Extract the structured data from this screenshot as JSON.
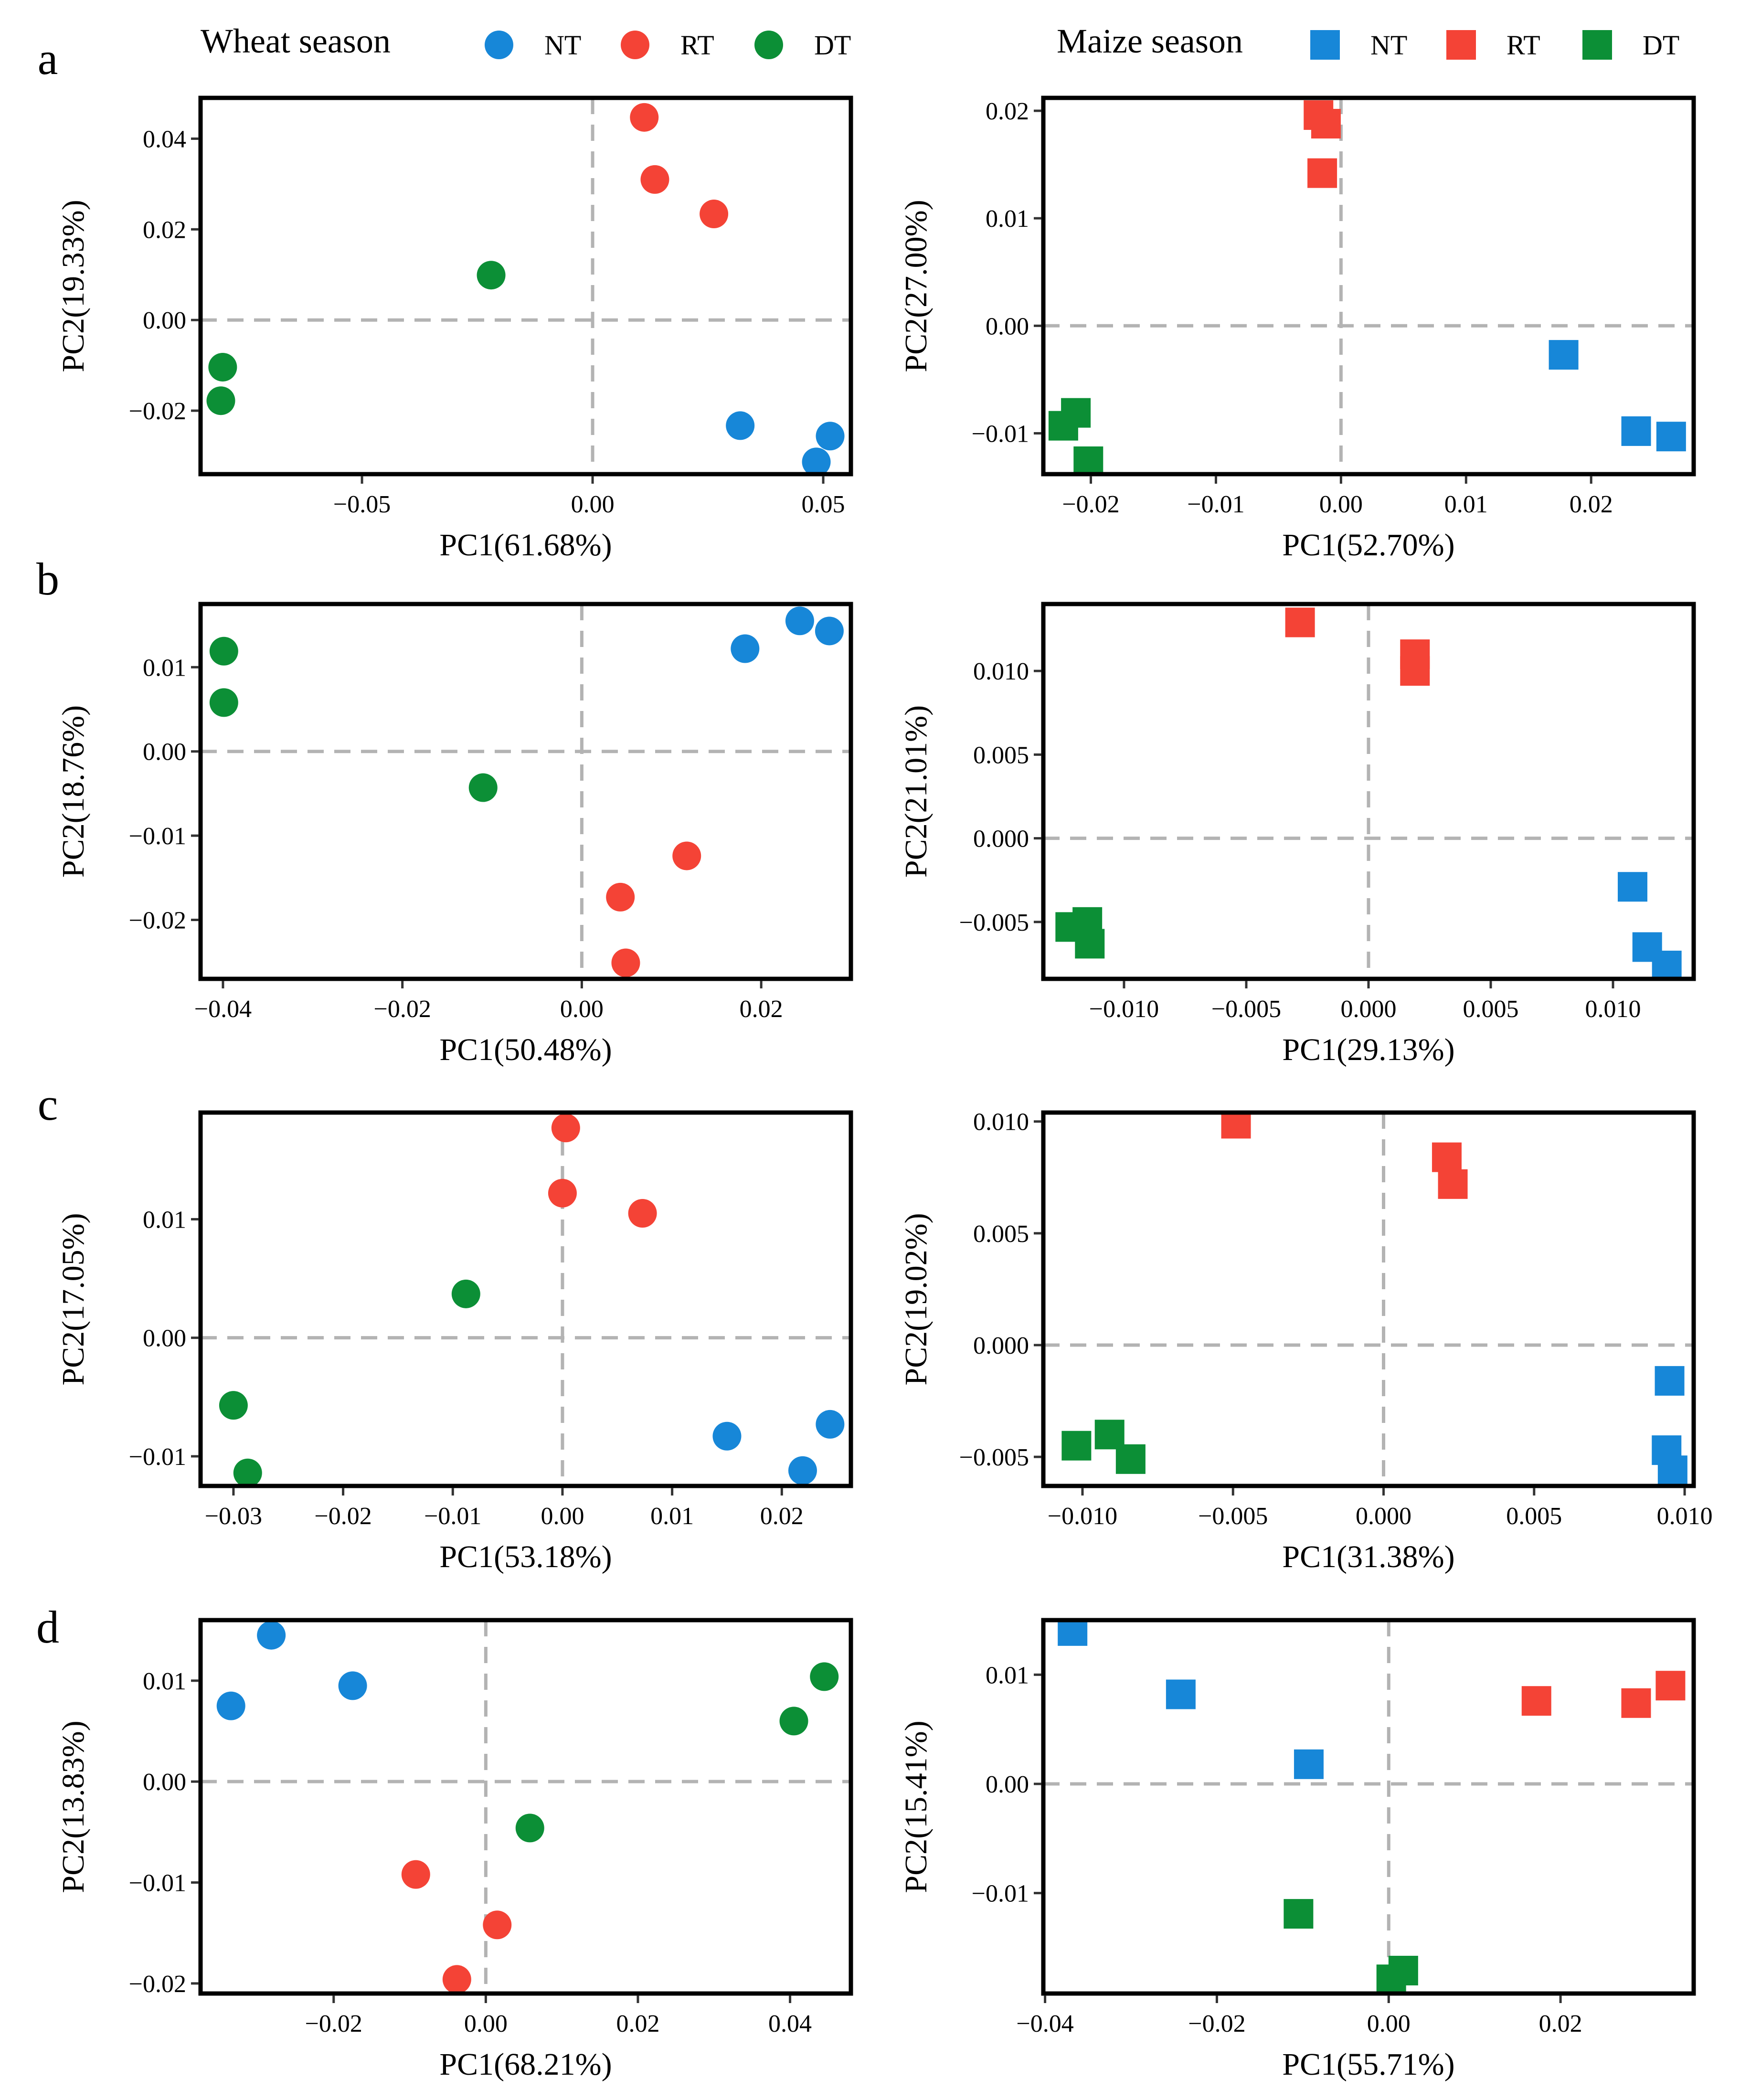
{
  "colors": {
    "NT": "#1787D8",
    "RT": "#F44336",
    "DT": "#0C8F36",
    "zero_line": "#B3B3B3",
    "frame": "#000000"
  },
  "legends": [
    {
      "title": "Wheat season",
      "marker": "circle",
      "entries": [
        {
          "label": "NT",
          "group": "NT"
        },
        {
          "label": "RT",
          "group": "RT"
        },
        {
          "label": "DT",
          "group": "DT"
        }
      ]
    },
    {
      "title": "Maize season",
      "marker": "square",
      "entries": [
        {
          "label": "NT",
          "group": "NT"
        },
        {
          "label": "RT",
          "group": "RT"
        },
        {
          "label": "DT",
          "group": "DT"
        }
      ]
    }
  ],
  "chart_data": [
    {
      "type": "scatter",
      "row_label": "a",
      "season": "Wheat season",
      "marker": "circle",
      "xlabel": "PC1(61.68%)",
      "ylabel": "PC2(19.33%)",
      "xlim": [
        -0.085,
        0.056
      ],
      "ylim": [
        -0.034,
        0.049
      ],
      "xticks": [
        -0.05,
        0.0,
        0.05
      ],
      "xtick_labels": [
        "−0.05",
        "0.00",
        "0.05"
      ],
      "yticks": [
        -0.02,
        0.0,
        0.02,
        0.04
      ],
      "ytick_labels": [
        "−0.02",
        "0.00",
        "0.02",
        "0.04"
      ],
      "points": [
        {
          "group": "NT",
          "x": 0.032,
          "y": -0.0233
        },
        {
          "group": "NT",
          "x": 0.0515,
          "y": -0.0256
        },
        {
          "group": "NT",
          "x": 0.0485,
          "y": -0.0313
        },
        {
          "group": "RT",
          "x": 0.0112,
          "y": 0.0447
        },
        {
          "group": "RT",
          "x": 0.0135,
          "y": 0.031
        },
        {
          "group": "RT",
          "x": 0.0263,
          "y": 0.0234
        },
        {
          "group": "DT",
          "x": -0.022,
          "y": 0.0099
        },
        {
          "group": "DT",
          "x": -0.0802,
          "y": -0.0104
        },
        {
          "group": "DT",
          "x": -0.0806,
          "y": -0.0178
        }
      ]
    },
    {
      "type": "scatter",
      "row_label": "",
      "season": "Maize season",
      "marker": "square",
      "xlabel": "PC1(52.70%)",
      "ylabel": "PC2(27.00%)",
      "xlim": [
        -0.0238,
        0.0282
      ],
      "ylim": [
        -0.0138,
        0.0212
      ],
      "xticks": [
        -0.02,
        -0.01,
        0.0,
        0.01,
        0.02
      ],
      "xtick_labels": [
        "−0.02",
        "−0.01",
        "0.00",
        "0.01",
        "0.02"
      ],
      "yticks": [
        -0.01,
        0.0,
        0.01,
        0.02
      ],
      "ytick_labels": [
        "−0.01",
        "0.00",
        "0.01",
        "0.02"
      ],
      "points": [
        {
          "group": "NT",
          "x": 0.0178,
          "y": -0.0027
        },
        {
          "group": "NT",
          "x": 0.0236,
          "y": -0.0098
        },
        {
          "group": "NT",
          "x": 0.0264,
          "y": -0.0103
        },
        {
          "group": "RT",
          "x": -0.0018,
          "y": 0.0196
        },
        {
          "group": "RT",
          "x": -0.0012,
          "y": 0.0188
        },
        {
          "group": "RT",
          "x": -0.0015,
          "y": 0.0142
        },
        {
          "group": "DT",
          "x": -0.0212,
          "y": -0.0081
        },
        {
          "group": "DT",
          "x": -0.0222,
          "y": -0.0093
        },
        {
          "group": "DT",
          "x": -0.0202,
          "y": -0.0126
        }
      ]
    },
    {
      "type": "scatter",
      "row_label": "b",
      "season": "Wheat season",
      "marker": "circle",
      "xlabel": "PC1(50.48%)",
      "ylabel": "PC2(18.76%)",
      "xlim": [
        -0.0425,
        0.03
      ],
      "ylim": [
        -0.027,
        0.0175
      ],
      "xticks": [
        -0.04,
        -0.02,
        0.0,
        0.02
      ],
      "xtick_labels": [
        "−0.04",
        "−0.02",
        "0.00",
        "0.02"
      ],
      "yticks": [
        -0.02,
        -0.01,
        0.0,
        0.01
      ],
      "ytick_labels": [
        "−0.02",
        "−0.01",
        "0.00",
        "0.01"
      ],
      "points": [
        {
          "group": "NT",
          "x": 0.0182,
          "y": 0.0122
        },
        {
          "group": "NT",
          "x": 0.0243,
          "y": 0.0155
        },
        {
          "group": "NT",
          "x": 0.0276,
          "y": 0.0143
        },
        {
          "group": "RT",
          "x": 0.0117,
          "y": -0.0124
        },
        {
          "group": "RT",
          "x": 0.0043,
          "y": -0.0173
        },
        {
          "group": "RT",
          "x": 0.0049,
          "y": -0.0251
        },
        {
          "group": "DT",
          "x": -0.0399,
          "y": 0.0119
        },
        {
          "group": "DT",
          "x": -0.0399,
          "y": 0.0058
        },
        {
          "group": "DT",
          "x": -0.011,
          "y": -0.0043
        }
      ]
    },
    {
      "type": "scatter",
      "row_label": "",
      "season": "Maize season",
      "marker": "square",
      "xlabel": "PC1(29.13%)",
      "ylabel": "PC2(21.01%)",
      "xlim": [
        -0.0133,
        0.0133
      ],
      "ylim": [
        -0.0084,
        0.014
      ],
      "xticks": [
        -0.01,
        -0.005,
        0.0,
        0.005,
        0.01
      ],
      "xtick_labels": [
        "−0.010",
        "−0.005",
        "0.000",
        "0.005",
        "0.010"
      ],
      "yticks": [
        -0.005,
        0.0,
        0.005,
        0.01
      ],
      "ytick_labels": [
        "−0.005",
        "0.000",
        "0.005",
        "0.010"
      ],
      "points": [
        {
          "group": "NT",
          "x": 0.0108,
          "y": -0.0029
        },
        {
          "group": "NT",
          "x": 0.0114,
          "y": -0.0065
        },
        {
          "group": "NT",
          "x": 0.0122,
          "y": -0.0076
        },
        {
          "group": "RT",
          "x": -0.0028,
          "y": 0.0129
        },
        {
          "group": "RT",
          "x": 0.0019,
          "y": 0.011
        },
        {
          "group": "RT",
          "x": 0.0019,
          "y": 0.01
        },
        {
          "group": "DT",
          "x": -0.0122,
          "y": -0.0053
        },
        {
          "group": "DT",
          "x": -0.0115,
          "y": -0.005
        },
        {
          "group": "DT",
          "x": -0.0114,
          "y": -0.0063
        }
      ]
    },
    {
      "type": "scatter",
      "row_label": "c",
      "season": "Wheat season",
      "marker": "circle",
      "xlabel": "PC1(53.18%)",
      "ylabel": "PC2(17.05%)",
      "xlim": [
        -0.033,
        0.0263
      ],
      "ylim": [
        -0.0125,
        0.019
      ],
      "xticks": [
        -0.03,
        -0.02,
        -0.01,
        0.0,
        0.01,
        0.02
      ],
      "xtick_labels": [
        "−0.03",
        "−0.02",
        "−0.01",
        "0.00",
        "0.01",
        "0.02"
      ],
      "yticks": [
        -0.01,
        0.0,
        0.01
      ],
      "ytick_labels": [
        "−0.01",
        "0.00",
        "0.01"
      ],
      "points": [
        {
          "group": "NT",
          "x": 0.015,
          "y": -0.0083
        },
        {
          "group": "NT",
          "x": 0.0219,
          "y": -0.0112
        },
        {
          "group": "NT",
          "x": 0.0244,
          "y": -0.0073
        },
        {
          "group": "RT",
          "x": 0.0003,
          "y": 0.0177
        },
        {
          "group": "RT",
          "x": 0.0,
          "y": 0.0122
        },
        {
          "group": "RT",
          "x": 0.0073,
          "y": 0.0105
        },
        {
          "group": "DT",
          "x": -0.0088,
          "y": 0.0037
        },
        {
          "group": "DT",
          "x": -0.03,
          "y": -0.0057
        },
        {
          "group": "DT",
          "x": -0.0287,
          "y": -0.0114
        }
      ]
    },
    {
      "type": "scatter",
      "row_label": "",
      "season": "Maize season",
      "marker": "square",
      "xlabel": "PC1(31.38%)",
      "ylabel": "PC2(19.02%)",
      "xlim": [
        -0.0113,
        0.0103
      ],
      "ylim": [
        -0.0063,
        0.0104
      ],
      "xticks": [
        -0.01,
        -0.005,
        0.0,
        0.005,
        0.01
      ],
      "xtick_labels": [
        "−0.010",
        "−0.005",
        "0.000",
        "0.005",
        "0.010"
      ],
      "yticks": [
        -0.005,
        0.0,
        0.005,
        0.01
      ],
      "ytick_labels": [
        "−0.005",
        "0.000",
        "0.005",
        "0.010"
      ],
      "points": [
        {
          "group": "NT",
          "x": 0.0095,
          "y": -0.0016
        },
        {
          "group": "NT",
          "x": 0.0094,
          "y": -0.0047
        },
        {
          "group": "NT",
          "x": 0.0096,
          "y": -0.0056
        },
        {
          "group": "RT",
          "x": -0.0049,
          "y": 0.0099
        },
        {
          "group": "RT",
          "x": 0.0021,
          "y": 0.0084
        },
        {
          "group": "RT",
          "x": 0.0023,
          "y": 0.0072
        },
        {
          "group": "DT",
          "x": -0.0102,
          "y": -0.0045
        },
        {
          "group": "DT",
          "x": -0.0091,
          "y": -0.004
        },
        {
          "group": "DT",
          "x": -0.0084,
          "y": -0.0051
        }
      ]
    },
    {
      "type": "scatter",
      "row_label": "d",
      "season": "Wheat season",
      "marker": "circle",
      "xlabel": "PC1(68.21%)",
      "ylabel": "PC2(13.83%)",
      "xlim": [
        -0.0375,
        0.048
      ],
      "ylim": [
        -0.021,
        0.016
      ],
      "xticks": [
        -0.02,
        0.0,
        0.02,
        0.04
      ],
      "xtick_labels": [
        "−0.02",
        "0.00",
        "0.02",
        "0.04"
      ],
      "yticks": [
        -0.02,
        -0.01,
        0.0,
        0.01
      ],
      "ytick_labels": [
        "−0.02",
        "−0.01",
        "0.00",
        "0.01"
      ],
      "points": [
        {
          "group": "NT",
          "x": -0.0335,
          "y": 0.0075
        },
        {
          "group": "NT",
          "x": -0.0282,
          "y": 0.0145
        },
        {
          "group": "NT",
          "x": -0.0175,
          "y": 0.0095
        },
        {
          "group": "RT",
          "x": -0.0092,
          "y": -0.0092
        },
        {
          "group": "RT",
          "x": 0.0015,
          "y": -0.0142
        },
        {
          "group": "RT",
          "x": -0.0038,
          "y": -0.0196
        },
        {
          "group": "DT",
          "x": 0.0058,
          "y": -0.0046
        },
        {
          "group": "DT",
          "x": 0.0405,
          "y": 0.006
        },
        {
          "group": "DT",
          "x": 0.0445,
          "y": 0.0104
        }
      ]
    },
    {
      "type": "scatter",
      "row_label": "",
      "season": "Maize season",
      "marker": "square",
      "xlabel": "PC1(55.71%)",
      "ylabel": "PC2(15.41%)",
      "xlim": [
        -0.0402,
        0.0355
      ],
      "ylim": [
        -0.0192,
        0.015
      ],
      "xticks": [
        -0.04,
        -0.02,
        0.0,
        0.02
      ],
      "xtick_labels": [
        "−0.04",
        "−0.02",
        "0.00",
        "0.02"
      ],
      "yticks": [
        -0.01,
        0.0,
        0.01
      ],
      "ytick_labels": [
        "−0.01",
        "0.00",
        "0.01"
      ],
      "points": [
        {
          "group": "NT",
          "x": -0.0368,
          "y": 0.014
        },
        {
          "group": "NT",
          "x": -0.0242,
          "y": 0.0082
        },
        {
          "group": "NT",
          "x": -0.0093,
          "y": 0.0018
        },
        {
          "group": "RT",
          "x": 0.0172,
          "y": 0.0076
        },
        {
          "group": "RT",
          "x": 0.0288,
          "y": 0.0074
        },
        {
          "group": "RT",
          "x": 0.0328,
          "y": 0.009
        },
        {
          "group": "DT",
          "x": -0.0105,
          "y": -0.0119
        },
        {
          "group": "DT",
          "x": 0.0017,
          "y": -0.0171
        },
        {
          "group": "DT",
          "x": 0.0003,
          "y": -0.0179
        }
      ]
    }
  ]
}
